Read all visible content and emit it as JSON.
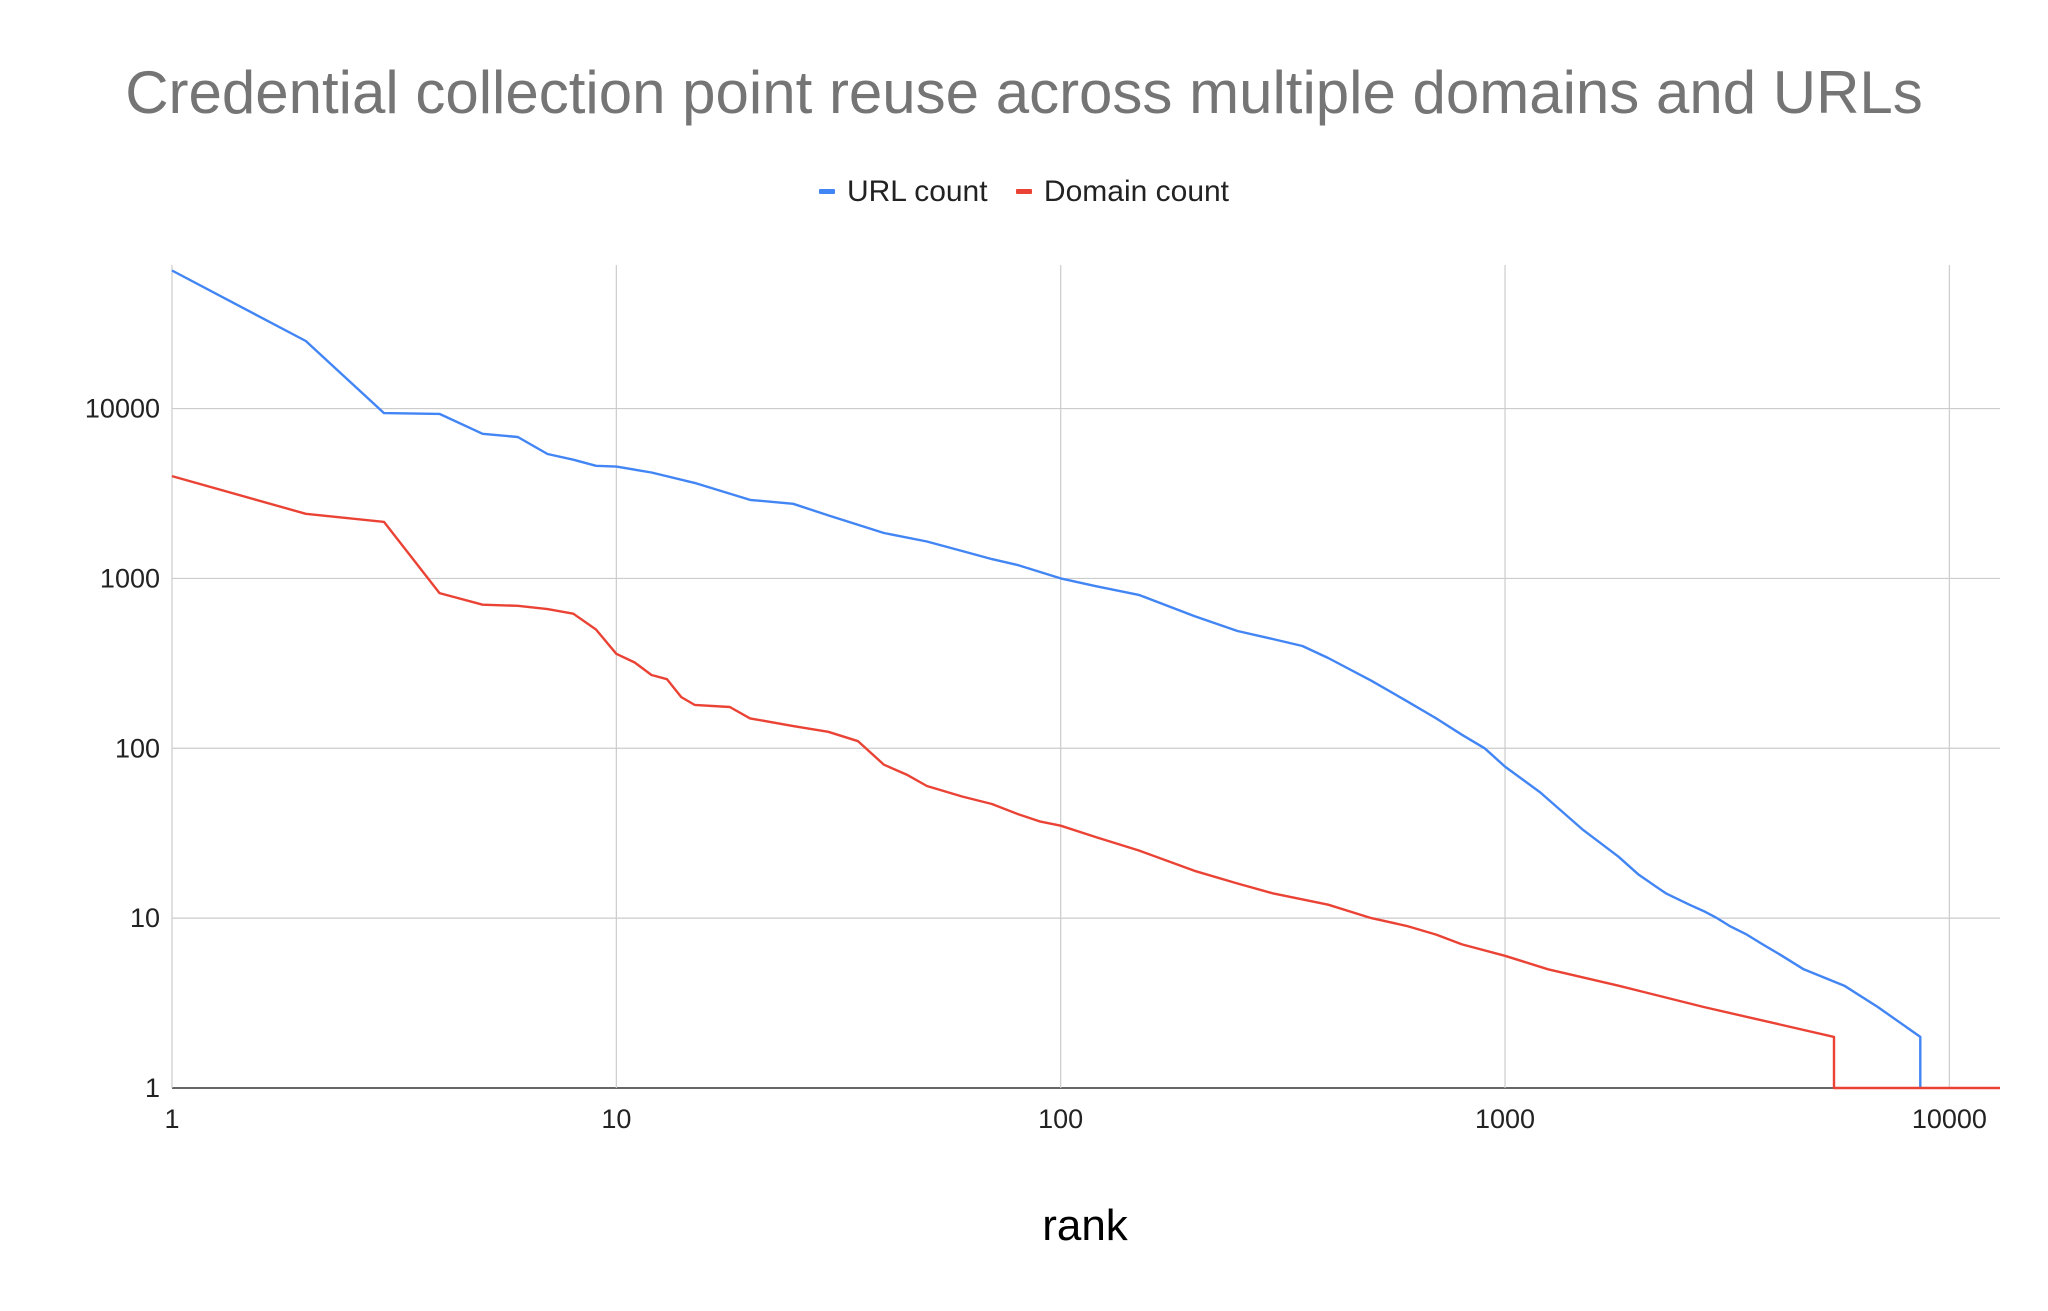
{
  "chart_data": {
    "type": "line",
    "title": "Credential collection point reuse across multiple domains and URLs",
    "xlabel": "rank",
    "ylabel": "",
    "x_scale": "log",
    "y_scale": "log",
    "xlim": [
      1,
      13000
    ],
    "ylim": [
      1,
      70000
    ],
    "x_ticks": [
      1,
      10,
      100,
      1000,
      10000
    ],
    "x_tick_labels": [
      "1",
      "10",
      "100",
      "1000",
      "10000"
    ],
    "y_ticks": [
      1,
      10,
      100,
      1000,
      10000
    ],
    "y_tick_labels": [
      "1",
      "10",
      "100",
      "1000",
      "10000"
    ],
    "grid": true,
    "legend_position": "top",
    "series": [
      {
        "name": "URL count",
        "color": "#4285f4",
        "x": [
          1,
          2,
          3,
          4,
          5,
          6,
          7,
          8,
          9,
          10,
          12,
          15,
          20,
          25,
          30,
          40,
          50,
          60,
          70,
          80,
          100,
          120,
          150,
          200,
          250,
          300,
          350,
          400,
          500,
          600,
          700,
          800,
          900,
          1000,
          1200,
          1500,
          1800,
          2000,
          2300,
          2600,
          2800,
          3000,
          3200,
          3500,
          3800,
          4200,
          4700,
          5800,
          6900,
          8600,
          8600
        ],
        "y": [
          65000,
          25000,
          9400,
          9300,
          7100,
          6800,
          5400,
          5000,
          4600,
          4550,
          4200,
          3650,
          2900,
          2750,
          2350,
          1850,
          1650,
          1450,
          1300,
          1200,
          1000,
          900,
          800,
          600,
          490,
          440,
          400,
          340,
          250,
          190,
          150,
          120,
          100,
          78,
          55,
          33,
          23,
          18,
          14,
          12,
          11,
          10,
          9,
          8,
          7,
          6,
          5,
          4,
          3,
          2,
          1
        ]
      },
      {
        "name": "Domain count",
        "color": "#ea4335",
        "x": [
          1,
          2,
          3,
          4,
          5,
          6,
          7,
          8,
          9,
          10,
          11,
          12,
          13,
          14,
          15,
          18,
          20,
          25,
          30,
          35,
          40,
          45,
          50,
          60,
          70,
          80,
          90,
          100,
          120,
          150,
          200,
          250,
          300,
          400,
          500,
          600,
          700,
          800,
          1000,
          1250,
          1800,
          2800,
          5500,
          5500,
          13000
        ],
        "y": [
          4000,
          2400,
          2150,
          820,
          700,
          690,
          660,
          620,
          500,
          360,
          320,
          270,
          255,
          200,
          180,
          175,
          150,
          135,
          125,
          110,
          80,
          70,
          60,
          52,
          47,
          41,
          37,
          35,
          30,
          25,
          19,
          16,
          14,
          12,
          10,
          9,
          8,
          7,
          6,
          5,
          4,
          3,
          2,
          1,
          1
        ]
      }
    ]
  }
}
